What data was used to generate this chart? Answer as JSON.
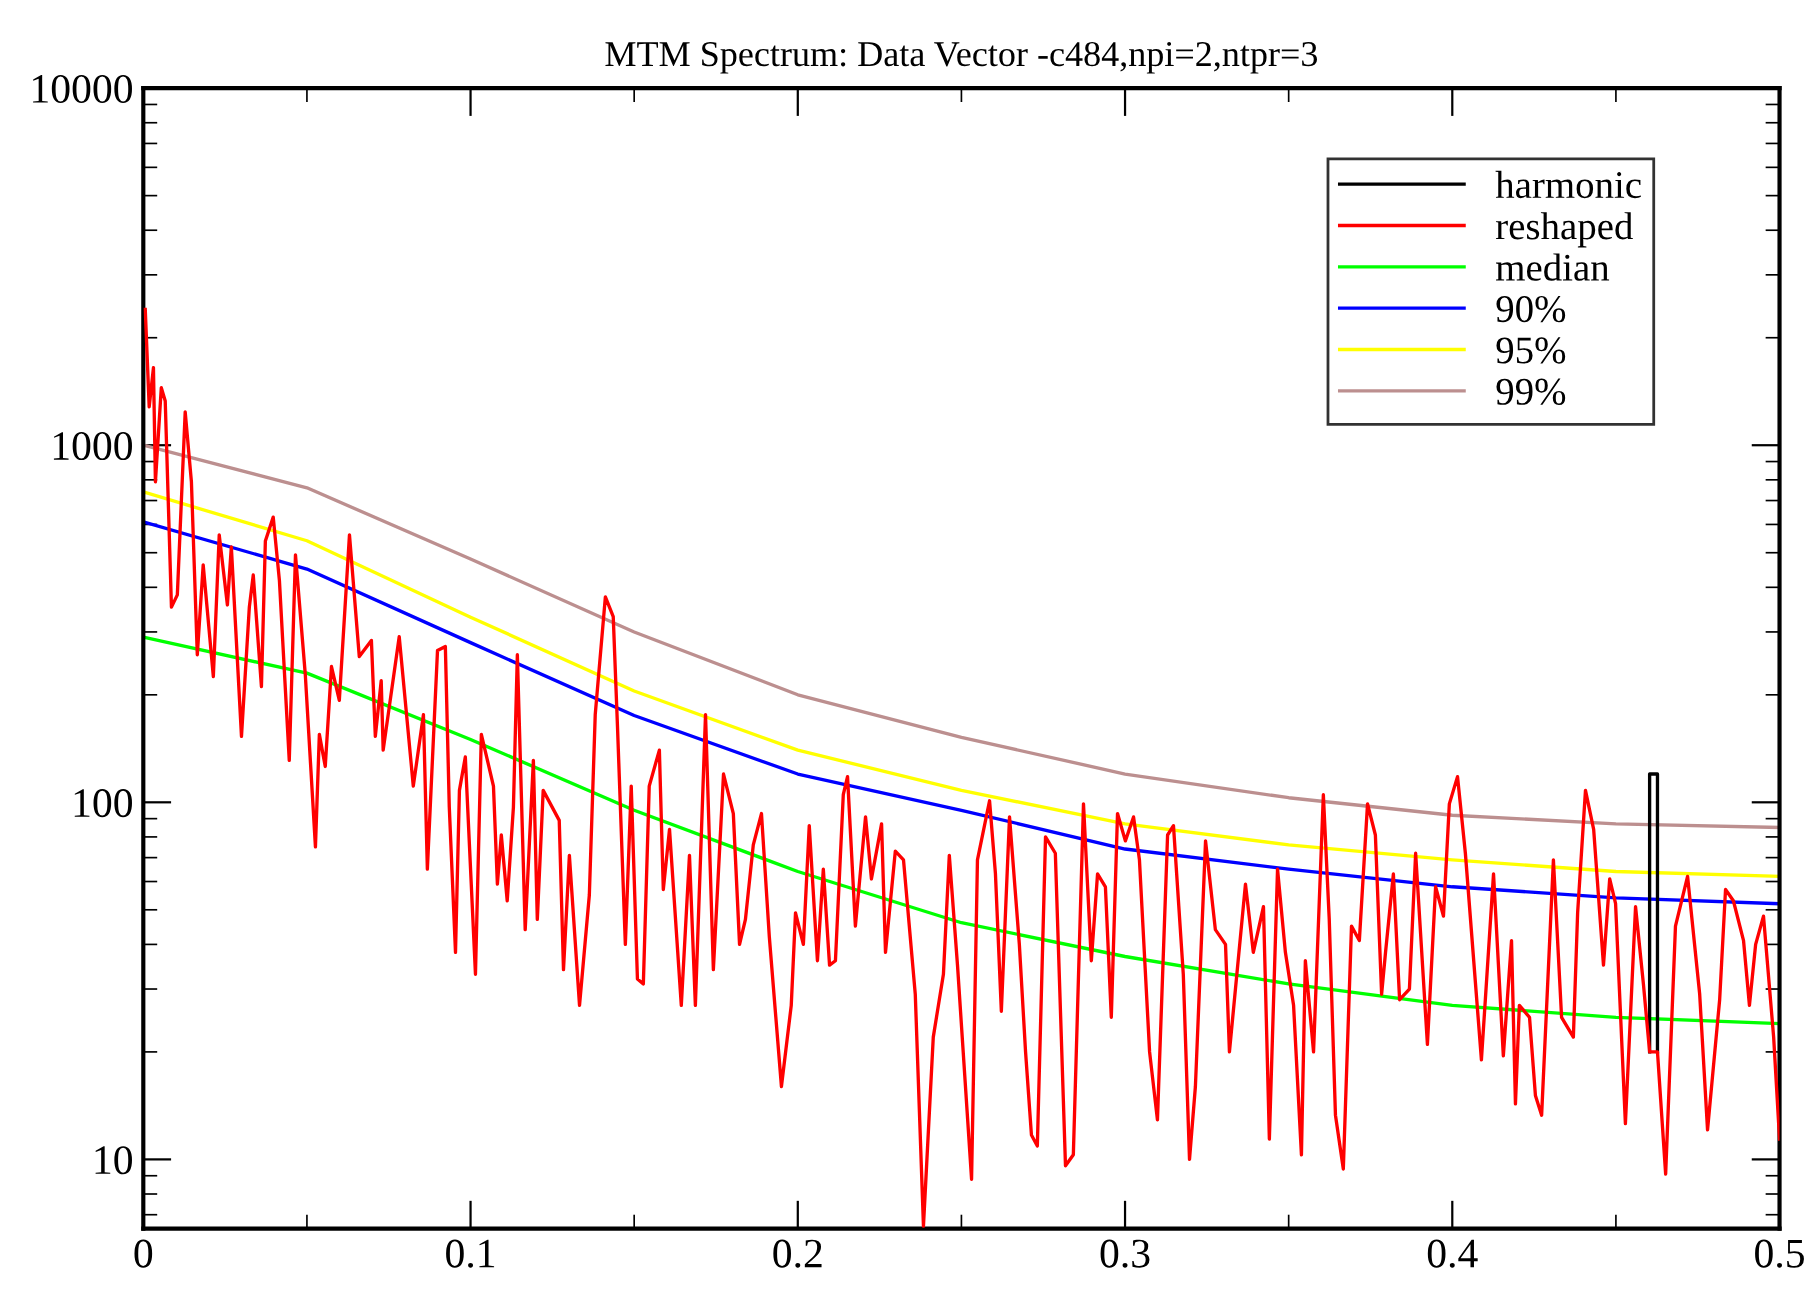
{
  "chart_data": {
    "type": "line",
    "title": "MTM Spectrum: Data Vector -c484,npi=2,ntpr=3",
    "log": "y",
    "legend": "top right",
    "grid": false,
    "marker": "none",
    "line_style": "solid",
    "xlim": [
      0,
      0.5
    ],
    "xticks": [
      0,
      0.1,
      0.2,
      0.3,
      0.4,
      0.5
    ],
    "ylim": [
      6.4,
      10000
    ],
    "yticks": [
      10,
      100,
      1000,
      10000
    ],
    "series": [
      {
        "name": "harmonic",
        "color": "#000000",
        "x": [
          0.4603,
          0.4603,
          0.4627,
          0.4627
        ],
        "values": [
          20,
          120,
          120,
          20
        ]
      },
      {
        "name": "reshaped",
        "color": "#ff0000",
        "x": [
          0.0006,
          0.0018,
          0.0031,
          0.0037,
          0.0055,
          0.0067,
          0.0086,
          0.0104,
          0.0128,
          0.0147,
          0.0165,
          0.0183,
          0.0214,
          0.0232,
          0.0257,
          0.0269,
          0.03,
          0.0324,
          0.0336,
          0.0361,
          0.0373,
          0.0397,
          0.0416,
          0.0446,
          0.0465,
          0.0495,
          0.0526,
          0.0538,
          0.0556,
          0.0575,
          0.0599,
          0.063,
          0.066,
          0.0697,
          0.0709,
          0.0727,
          0.0733,
          0.0782,
          0.0825,
          0.0856,
          0.0868,
          0.0899,
          0.0923,
          0.0935,
          0.0954,
          0.0966,
          0.0984,
          0.1015,
          0.1033,
          0.107,
          0.1082,
          0.1094,
          0.1112,
          0.1131,
          0.1143,
          0.1167,
          0.1192,
          0.1204,
          0.1222,
          0.1271,
          0.1284,
          0.1302,
          0.1333,
          0.1363,
          0.1381,
          0.1412,
          0.1436,
          0.1449,
          0.1473,
          0.1491,
          0.151,
          0.1528,
          0.1546,
          0.1577,
          0.1589,
          0.1608,
          0.1644,
          0.1669,
          0.1687,
          0.1718,
          0.1742,
          0.1773,
          0.1803,
          0.1822,
          0.184,
          0.1864,
          0.1889,
          0.1913,
          0.195,
          0.198,
          0.1993,
          0.2017,
          0.2035,
          0.206,
          0.2078,
          0.2097,
          0.2115,
          0.2139,
          0.2152,
          0.2176,
          0.2207,
          0.2225,
          0.2256,
          0.2268,
          0.2298,
          0.2323,
          0.2359,
          0.2384,
          0.2414,
          0.2445,
          0.2463,
          0.2488,
          0.2531,
          0.2549,
          0.2586,
          0.2604,
          0.2622,
          0.2647,
          0.2677,
          0.2696,
          0.2714,
          0.2732,
          0.2757,
          0.2787,
          0.2818,
          0.2842,
          0.2873,
          0.2897,
          0.2916,
          0.294,
          0.2958,
          0.2977,
          0.3001,
          0.3026,
          0.3044,
          0.3075,
          0.3099,
          0.313,
          0.3148,
          0.3178,
          0.3197,
          0.3215,
          0.3246,
          0.3276,
          0.3307,
          0.3319,
          0.3368,
          0.3392,
          0.3423,
          0.3441,
          0.3466,
          0.349,
          0.3515,
          0.3539,
          0.3551,
          0.3576,
          0.3606,
          0.3624,
          0.3643,
          0.3667,
          0.3692,
          0.3716,
          0.3741,
          0.3765,
          0.3784,
          0.3796,
          0.382,
          0.3839,
          0.3869,
          0.3888,
          0.3924,
          0.3949,
          0.3973,
          0.3991,
          0.4016,
          0.404,
          0.4089,
          0.4126,
          0.4156,
          0.4181,
          0.4193,
          0.4205,
          0.4236,
          0.4254,
          0.4273,
          0.4309,
          0.4334,
          0.437,
          0.4383,
          0.4407,
          0.4432,
          0.4462,
          0.4481,
          0.4499,
          0.4529,
          0.456,
          0.4584,
          0.4603,
          0.4627,
          0.4652,
          0.4682,
          0.4719,
          0.4756,
          0.478,
          0.4817,
          0.4835,
          0.4859,
          0.489,
          0.4908,
          0.4927,
          0.4951,
          0.4982,
          0.5
        ],
        "values": [
          2400,
          1280,
          1650,
          790,
          1450,
          1330,
          352,
          381,
          1240,
          790,
          259,
          462,
          225,
          561,
          357,
          519,
          153,
          352,
          433,
          211,
          539,
          629,
          417,
          131,
          493,
          228,
          75,
          155,
          126,
          240,
          193,
          561,
          256,
          284,
          153,
          219,
          140,
          291,
          111,
          176,
          65,
          266,
          273,
          97,
          38,
          108,
          134,
          33,
          155,
          111,
          59,
          81,
          53,
          97,
          259,
          44,
          131,
          47,
          108,
          89,
          34,
          71,
          27,
          55,
          176,
          376,
          331,
          163,
          40,
          111,
          32,
          31,
          111,
          140,
          57,
          84,
          27,
          71,
          27,
          176,
          34,
          120,
          93,
          40,
          47,
          76,
          93,
          42,
          16,
          27,
          49,
          40,
          86,
          36,
          65,
          35,
          36,
          105,
          118,
          45,
          91,
          61,
          87,
          38,
          73,
          69,
          29,
          6.5,
          22,
          33,
          71,
          35,
          8.8,
          69,
          101,
          63,
          26,
          91,
          40,
          20,
          11.7,
          10.9,
          80,
          72,
          9.6,
          10.3,
          99,
          36,
          63,
          58,
          25,
          93,
          78,
          91,
          69,
          20,
          12.9,
          81,
          86,
          33,
          10,
          16,
          78,
          44,
          40,
          20,
          59,
          38,
          51,
          11.4,
          65,
          38,
          27,
          10.3,
          36,
          20,
          105,
          47,
          13.3,
          9.4,
          45,
          41,
          99,
          81,
          29,
          38,
          63,
          28,
          30,
          72,
          21,
          58,
          48,
          99,
          118,
          72,
          19,
          63,
          19.5,
          41,
          14.3,
          27,
          25,
          15.1,
          13.3,
          69,
          25,
          22,
          49,
          108,
          84,
          35,
          61,
          52,
          12.6,
          51,
          31,
          20,
          20,
          9.1,
          45,
          62,
          29,
          12.1,
          28,
          57,
          53,
          41,
          27,
          40,
          48,
          22,
          11.4
        ]
      },
      {
        "name": "median",
        "color": "#00ff00",
        "x": [
          0,
          0.05,
          0.1,
          0.15,
          0.2,
          0.25,
          0.3,
          0.35,
          0.4,
          0.45,
          0.5
        ],
        "values": [
          290,
          230,
          150,
          95,
          64,
          46,
          37,
          31,
          27,
          25,
          24
        ]
      },
      {
        "name": "90%",
        "color": "#0000ff",
        "x": [
          0,
          0.05,
          0.1,
          0.15,
          0.2,
          0.25,
          0.3,
          0.35,
          0.4,
          0.45,
          0.5
        ],
        "values": [
          610,
          450,
          280,
          175,
          120,
          95,
          74,
          65,
          58,
          54,
          52
        ]
      },
      {
        "name": "95%",
        "color": "#ffff00",
        "x": [
          0,
          0.05,
          0.1,
          0.15,
          0.2,
          0.25,
          0.3,
          0.35,
          0.4,
          0.45,
          0.5
        ],
        "values": [
          740,
          540,
          330,
          205,
          140,
          108,
          87,
          76,
          69,
          64,
          62
        ]
      },
      {
        "name": "99%",
        "color": "#bc8f8f",
        "x": [
          0,
          0.05,
          0.1,
          0.15,
          0.2,
          0.25,
          0.3,
          0.35,
          0.4,
          0.45,
          0.5
        ],
        "values": [
          1000,
          760,
          480,
          300,
          200,
          152,
          120,
          103,
          92,
          87,
          85
        ]
      }
    ]
  }
}
